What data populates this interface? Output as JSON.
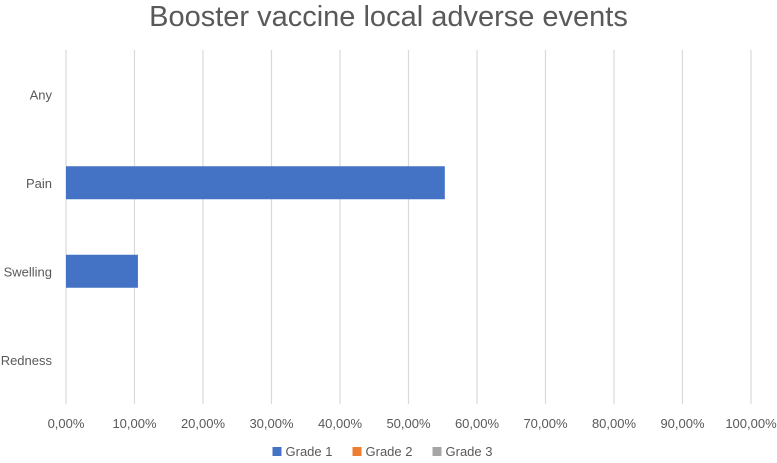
{
  "chart_data": {
    "type": "bar",
    "orientation": "horizontal",
    "title": "Booster vaccine local adverse events",
    "categories": [
      "Any",
      "Pain",
      "Swelling",
      "Redness"
    ],
    "series": [
      {
        "name": "Grade 1",
        "color": "#4472C4",
        "values": [
          0,
          0.553,
          0.105,
          0
        ]
      },
      {
        "name": "Grade 2",
        "color": "#ED7D31",
        "values": [
          0,
          0,
          0,
          0
        ]
      },
      {
        "name": "Grade 3",
        "color": "#A5A5A5",
        "values": [
          0,
          0,
          0,
          0
        ]
      }
    ],
    "xlim": [
      0,
      1
    ],
    "x_ticks": [
      0,
      0.1,
      0.2,
      0.3,
      0.4,
      0.5,
      0.6,
      0.7,
      0.8,
      0.9,
      1.0
    ],
    "x_tick_labels": [
      "0,00%",
      "10,00%",
      "20,00%",
      "30,00%",
      "40,00%",
      "50,00%",
      "60,00%",
      "70,00%",
      "80,00%",
      "90,00%",
      "100,00%"
    ],
    "grid": "vertical",
    "legend_position": "bottom"
  }
}
